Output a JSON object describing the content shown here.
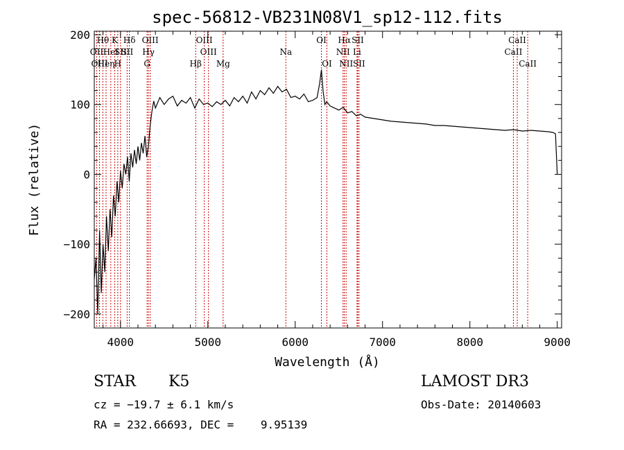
{
  "chart_data": {
    "type": "line",
    "title": "spec-56812-VB231N08V1_sp12-112.fits",
    "xlabel": "Wavelength (Å)",
    "ylabel": "Flux (relative)",
    "xlim": [
      3700,
      9050
    ],
    "ylim": [
      -220,
      205
    ],
    "xticks": [
      4000,
      5000,
      6000,
      7000,
      8000,
      9000
    ],
    "yticks": [
      -200,
      -100,
      0,
      100,
      200
    ],
    "grid": false,
    "series": [
      {
        "x": [
          3700,
          3720,
          3740,
          3760,
          3780,
          3800,
          3820,
          3840,
          3860,
          3880,
          3900,
          3920,
          3940,
          3960,
          3980,
          4000,
          4020,
          4040,
          4060,
          4080,
          4100,
          4120,
          4140,
          4160,
          4180,
          4200,
          4220,
          4240,
          4260,
          4280,
          4300,
          4320,
          4340,
          4360,
          4380,
          4400,
          4450,
          4500,
          4550,
          4600,
          4650,
          4700,
          4750,
          4800,
          4850,
          4900,
          4950,
          5000,
          5050,
          5100,
          5150,
          5200,
          5250,
          5300,
          5350,
          5400,
          5450,
          5500,
          5550,
          5600,
          5650,
          5700,
          5750,
          5800,
          5850,
          5900,
          5950,
          6000,
          6050,
          6100,
          6150,
          6200,
          6250,
          6280,
          6300,
          6320,
          6340,
          6360,
          6400,
          6450,
          6500,
          6550,
          6600,
          6650,
          6700,
          6750,
          6800,
          6900,
          7000,
          7100,
          7200,
          7300,
          7400,
          7500,
          7600,
          7700,
          7800,
          7900,
          8000,
          8100,
          8200,
          8300,
          8400,
          8500,
          8600,
          8700,
          8800,
          8900,
          8950,
          8980,
          9000
        ],
        "y": [
          -150,
          -120,
          -200,
          -80,
          -170,
          -100,
          -140,
          -60,
          -110,
          -50,
          -90,
          -30,
          -60,
          -10,
          -40,
          5,
          -20,
          15,
          0,
          25,
          -10,
          30,
          10,
          35,
          15,
          40,
          20,
          45,
          30,
          55,
          25,
          40,
          70,
          90,
          105,
          95,
          110,
          100,
          108,
          112,
          98,
          106,
          102,
          110,
          95,
          108,
          100,
          102,
          97,
          104,
          100,
          106,
          98,
          110,
          104,
          112,
          102,
          118,
          108,
          120,
          114,
          124,
          116,
          126,
          118,
          122,
          110,
          112,
          108,
          115,
          104,
          106,
          110,
          130,
          150,
          118,
          100,
          104,
          98,
          95,
          92,
          96,
          88,
          90,
          84,
          86,
          82,
          80,
          78,
          76,
          75,
          74,
          73,
          72,
          70,
          70,
          69,
          68,
          67,
          66,
          65,
          64,
          63,
          64,
          62,
          63,
          62,
          61,
          60,
          58,
          0
        ]
      }
    ],
    "lines": [
      {
        "label": "Hθ",
        "x": 3798,
        "row": 0
      },
      {
        "label": "OII",
        "x": 3727,
        "row": 1
      },
      {
        "label": "OIII",
        "x": 3760,
        "row": 2
      },
      {
        "label": "Heη",
        "x": 3835,
        "row": 2
      },
      {
        "label": "HeI",
        "x": 3889,
        "row": 1
      },
      {
        "label": "K",
        "x": 3934,
        "row": 0
      },
      {
        "label": "SII",
        "x": 4000,
        "row": 1
      },
      {
        "label": "H",
        "x": 3969,
        "row": 2
      },
      {
        "label": "Hδ",
        "x": 4102,
        "row": 0
      },
      {
        "label": "SII",
        "x": 4076,
        "row": 1
      },
      {
        "label": "OIII",
        "x": 4340,
        "row": 0
      },
      {
        "label": "Hγ",
        "x": 4320,
        "row": 1
      },
      {
        "label": "G",
        "x": 4305,
        "row": 2
      },
      {
        "label": "Hβ",
        "x": 4861,
        "row": 2
      },
      {
        "label": "OIII",
        "x": 4959,
        "row": 0
      },
      {
        "label": "OIII",
        "x": 5007,
        "row": 1
      },
      {
        "label": "Mg",
        "x": 5175,
        "row": 2
      },
      {
        "label": "Na",
        "x": 5893,
        "row": 1
      },
      {
        "label": "OI",
        "x": 6300,
        "row": 0
      },
      {
        "label": "OI",
        "x": 6363,
        "row": 2
      },
      {
        "label": "Hα",
        "x": 6563,
        "row": 0
      },
      {
        "label": "NII",
        "x": 6548,
        "row": 1
      },
      {
        "label": "NII",
        "x": 6583,
        "row": 2
      },
      {
        "label": "SII",
        "x": 6716,
        "row": 0
      },
      {
        "label": "Li",
        "x": 6708,
        "row": 1
      },
      {
        "label": "SII",
        "x": 6731,
        "row": 2
      },
      {
        "label": "CaII",
        "x": 8542,
        "row": 0
      },
      {
        "label": "CaII",
        "x": 8498,
        "row": 1
      },
      {
        "label": "CaII",
        "x": 8662,
        "row": 2
      }
    ]
  },
  "info": {
    "object_class": "STAR",
    "subclass": "K5",
    "survey": "LAMOST DR3",
    "redshift": "cz = −19.7 ± 6.1 km/s",
    "obs_date": "Obs-Date: 20140603",
    "coords": "RA = 232.66693, DEC =    9.95139"
  },
  "colors": {
    "spectrum": "#000000",
    "marker_lines": "#cc0000"
  }
}
